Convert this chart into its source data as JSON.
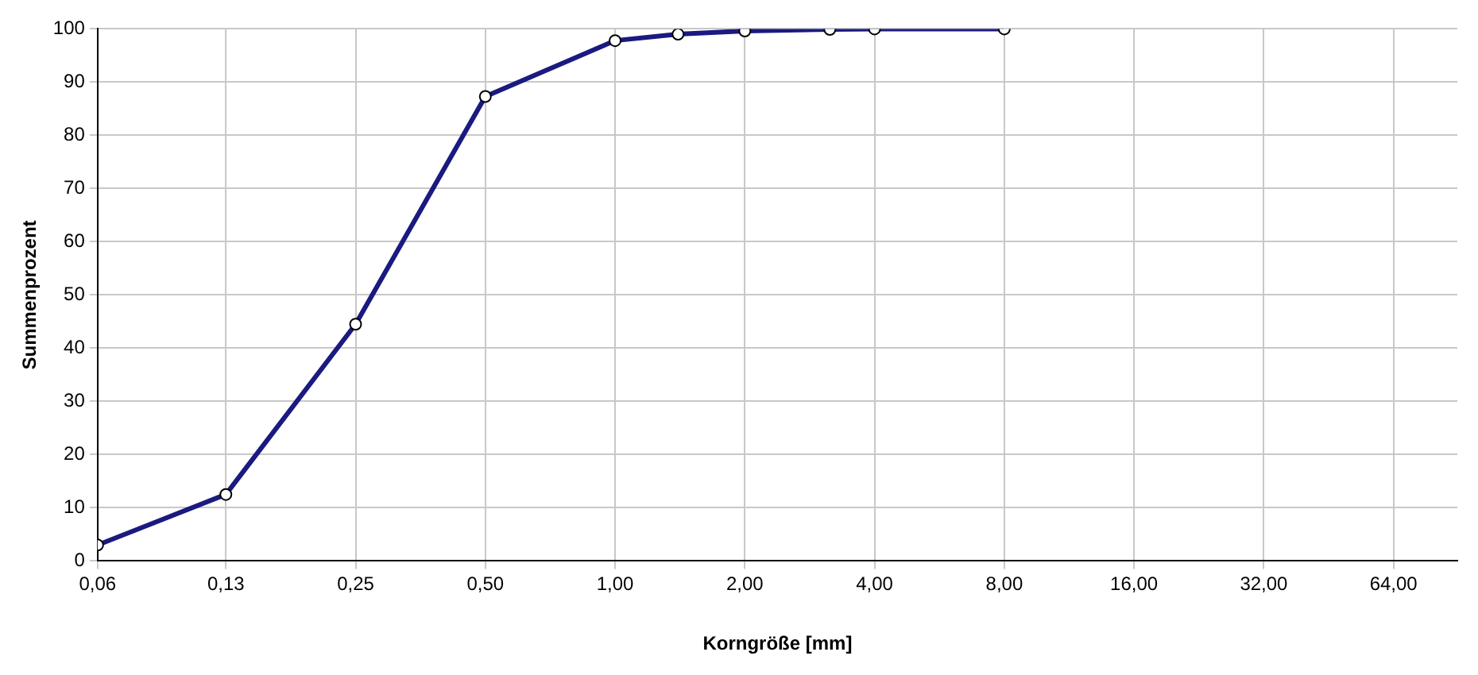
{
  "chart_data": {
    "type": "line",
    "xlabel": "Korngröße [mm]",
    "ylabel": "Summenprozent",
    "log": "x",
    "grid": true,
    "marker": "circle",
    "line_style": "solid",
    "x": [
      0.063,
      0.125,
      0.25,
      0.5,
      1,
      1.4,
      2,
      3.15,
      4,
      8
    ],
    "series": [
      {
        "color": "#1a1a80",
        "values": [
          3,
          12.5,
          44.5,
          87.3,
          97.8,
          99,
          99.6,
          99.9,
          100,
          100
        ]
      }
    ],
    "xlim": [
      0.063,
      90
    ],
    "xticks": [
      {
        "value": 0.063,
        "label": "0,06"
      },
      {
        "value": 0.125,
        "label": "0,13"
      },
      {
        "value": 0.25,
        "label": "0,25"
      },
      {
        "value": 0.5,
        "label": "0,50"
      },
      {
        "value": 1,
        "label": "1,00"
      },
      {
        "value": 2,
        "label": "2,00"
      },
      {
        "value": 4,
        "label": "4,00"
      },
      {
        "value": 8,
        "label": "8,00"
      },
      {
        "value": 16,
        "label": "16,00"
      },
      {
        "value": 32,
        "label": "32,00"
      },
      {
        "value": 64,
        "label": "64,00"
      }
    ],
    "ylim": [
      0,
      100
    ],
    "yticks": [
      0,
      10,
      20,
      30,
      40,
      50,
      60,
      70,
      80,
      90,
      100
    ]
  }
}
